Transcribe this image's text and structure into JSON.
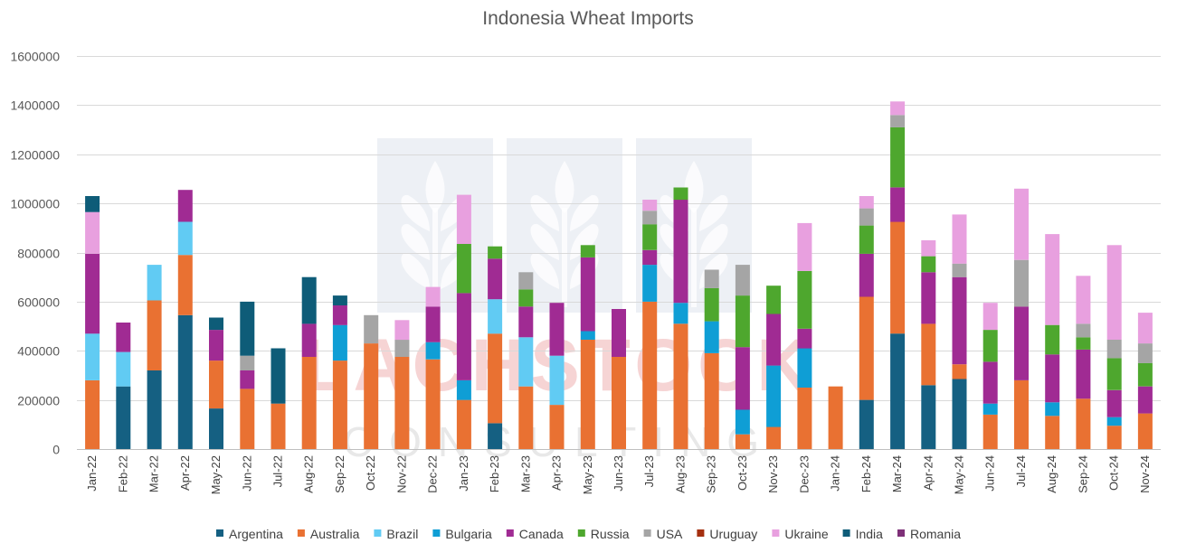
{
  "chart_data": {
    "type": "bar",
    "stacked": true,
    "title": "Indonesia Wheat Imports",
    "xlabel": "",
    "ylabel": "",
    "ylim": [
      0,
      1600000
    ],
    "yticks": [
      "0",
      "200000",
      "400000",
      "600000",
      "800000",
      "1000000",
      "1200000",
      "1400000",
      "1600000"
    ],
    "grid": true,
    "legend_position": "bottom",
    "categories": [
      "Jan-22",
      "Feb-22",
      "Mar-22",
      "Apr-22",
      "May-22",
      "Jun-22",
      "Jul-22",
      "Aug-22",
      "Sep-22",
      "Oct-22",
      "Nov-22",
      "Dec-22",
      "Jan-23",
      "Feb-23",
      "Mar-23",
      "Apr-23",
      "May-23",
      "Jun-23",
      "Jul-23",
      "Aug-23",
      "Sep-23",
      "Oct-23",
      "Nov-23",
      "Dec-23",
      "Jan-24",
      "Feb-24",
      "Mar-24",
      "Apr-24",
      "May-24",
      "Jun-24",
      "Jul-24",
      "Aug-24",
      "Sep-24",
      "Oct-24",
      "Nov-24"
    ],
    "series": [
      {
        "name": "Argentina",
        "color": "#156082",
        "values": [
          0,
          255000,
          320000,
          545000,
          165000,
          0,
          0,
          0,
          0,
          0,
          0,
          0,
          0,
          105000,
          0,
          0,
          0,
          0,
          0,
          0,
          0,
          0,
          0,
          0,
          0,
          200000,
          470000,
          260000,
          285000,
          0,
          0,
          0,
          0,
          0,
          0
        ]
      },
      {
        "name": "Australia",
        "color": "#E97132",
        "values": [
          280000,
          0,
          285000,
          245000,
          195000,
          245000,
          185000,
          375000,
          360000,
          430000,
          375000,
          365000,
          200000,
          365000,
          255000,
          180000,
          445000,
          375000,
          600000,
          510000,
          390000,
          60000,
          90000,
          250000,
          255000,
          420000,
          455000,
          250000,
          60000,
          140000,
          280000,
          135000,
          205000,
          95000,
          145000
        ]
      },
      {
        "name": "Brazil",
        "color": "#61CBF3",
        "values": [
          190000,
          140000,
          145000,
          135000,
          0,
          0,
          0,
          0,
          0,
          0,
          0,
          0,
          0,
          140000,
          200000,
          200000,
          0,
          0,
          0,
          0,
          0,
          0,
          0,
          0,
          0,
          0,
          0,
          0,
          0,
          0,
          0,
          0,
          0,
          0,
          0
        ]
      },
      {
        "name": "Bulgaria",
        "color": "#0F9ED5",
        "values": [
          0,
          0,
          0,
          0,
          0,
          0,
          0,
          0,
          145000,
          0,
          0,
          70000,
          80000,
          0,
          0,
          0,
          35000,
          0,
          150000,
          85000,
          130000,
          100000,
          250000,
          160000,
          0,
          0,
          0,
          0,
          0,
          45000,
          0,
          55000,
          0,
          35000,
          0
        ]
      },
      {
        "name": "Canada",
        "color": "#A02B93",
        "values": [
          325000,
          120000,
          0,
          130000,
          125000,
          75000,
          0,
          135000,
          80000,
          0,
          0,
          145000,
          355000,
          165000,
          125000,
          215000,
          300000,
          195000,
          60000,
          420000,
          0,
          255000,
          210000,
          80000,
          0,
          175000,
          140000,
          210000,
          355000,
          170000,
          300000,
          195000,
          200000,
          110000,
          110000
        ]
      },
      {
        "name": "Russia",
        "color": "#4EA72E",
        "values": [
          0,
          0,
          0,
          0,
          0,
          0,
          0,
          0,
          0,
          0,
          0,
          0,
          200000,
          50000,
          70000,
          0,
          50000,
          0,
          105000,
          50000,
          135000,
          210000,
          115000,
          235000,
          0,
          115000,
          245000,
          65000,
          0,
          130000,
          0,
          120000,
          50000,
          130000,
          95000
        ]
      },
      {
        "name": "USA",
        "color": "#A5A5A5",
        "values": [
          0,
          0,
          0,
          0,
          0,
          60000,
          0,
          0,
          0,
          115000,
          70000,
          0,
          0,
          0,
          70000,
          0,
          0,
          0,
          55000,
          0,
          75000,
          125000,
          0,
          0,
          0,
          70000,
          50000,
          0,
          55000,
          0,
          190000,
          0,
          55000,
          75000,
          80000
        ]
      },
      {
        "name": "Uruguay",
        "color": "#A5300F",
        "values": [
          0,
          0,
          0,
          0,
          0,
          0,
          0,
          0,
          0,
          0,
          0,
          0,
          0,
          0,
          0,
          0,
          0,
          0,
          0,
          0,
          0,
          0,
          0,
          0,
          0,
          0,
          0,
          0,
          0,
          0,
          0,
          0,
          0,
          0,
          0
        ]
      },
      {
        "name": "Ukraine",
        "color": "#E8A0DF",
        "values": [
          170000,
          0,
          0,
          0,
          0,
          0,
          0,
          0,
          0,
          0,
          80000,
          80000,
          200000,
          0,
          0,
          0,
          0,
          0,
          45000,
          0,
          0,
          0,
          0,
          195000,
          0,
          50000,
          55000,
          65000,
          200000,
          110000,
          290000,
          370000,
          195000,
          385000,
          125000
        ]
      },
      {
        "name": "India",
        "color": "#0E5C78",
        "values": [
          65000,
          0,
          0,
          0,
          50000,
          220000,
          225000,
          190000,
          40000,
          0,
          0,
          0,
          0,
          0,
          0,
          0,
          0,
          0,
          0,
          0,
          0,
          0,
          0,
          0,
          0,
          0,
          0,
          0,
          0,
          0,
          0,
          0,
          0,
          0,
          0
        ]
      },
      {
        "name": "Romania",
        "color": "#7E3078",
        "values": [
          0,
          0,
          0,
          0,
          0,
          0,
          0,
          0,
          0,
          0,
          0,
          0,
          0,
          0,
          0,
          0,
          0,
          0,
          0,
          0,
          0,
          0,
          0,
          0,
          0,
          0,
          0,
          0,
          0,
          0,
          0,
          0,
          0,
          0,
          0
        ]
      }
    ],
    "watermark_text": [
      "LACHSTOCK",
      "CONSULTING"
    ]
  }
}
